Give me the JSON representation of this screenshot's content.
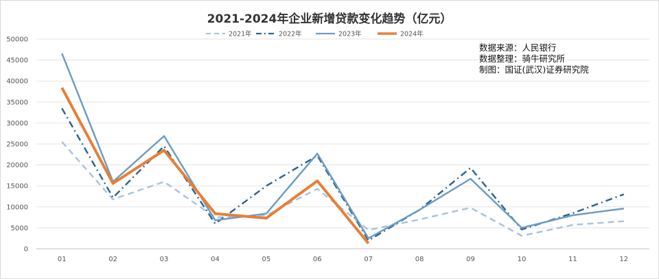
{
  "chart_data": {
    "type": "line",
    "title": "2021-2024年企业新增贷款变化趋势（亿元）",
    "categories": [
      "01",
      "02",
      "03",
      "04",
      "05",
      "06",
      "07",
      "08",
      "09",
      "10",
      "11",
      "12"
    ],
    "ylim": [
      0,
      50000
    ],
    "yticks": [
      0,
      5000,
      10000,
      15000,
      20000,
      25000,
      30000,
      35000,
      40000,
      45000,
      50000
    ],
    "grid": true,
    "legend_position": "top",
    "series": [
      {
        "name": "2021年",
        "color": "#a9c4dd",
        "dash": "dashed",
        "values": [
          25500,
          11800,
          16000,
          7500,
          8000,
          14300,
          4500,
          7000,
          9800,
          3100,
          5700,
          6600
        ]
      },
      {
        "name": "2022年",
        "color": "#2e6591",
        "dash": "dashdot",
        "values": [
          33500,
          12200,
          24500,
          6000,
          15000,
          22200,
          2000,
          9300,
          19300,
          4600,
          8500,
          13000
        ]
      },
      {
        "name": "2023年",
        "color": "#6d9dc2",
        "dash": "solid",
        "values": [
          46600,
          16000,
          26900,
          6800,
          8400,
          22700,
          2500,
          9300,
          16700,
          5000,
          8000,
          9600
        ]
      },
      {
        "name": "2024年",
        "color": "#e87e36",
        "dash": "solid-bold",
        "values": [
          38400,
          15600,
          23500,
          8400,
          7300,
          16200,
          1300,
          null,
          null,
          null,
          null,
          null
        ]
      }
    ]
  },
  "source_notes": {
    "line1": "数据来源：人民银行",
    "line2": "数据整理：骑牛研究所",
    "line3": "制图：国证(武汉)证券研究院"
  }
}
